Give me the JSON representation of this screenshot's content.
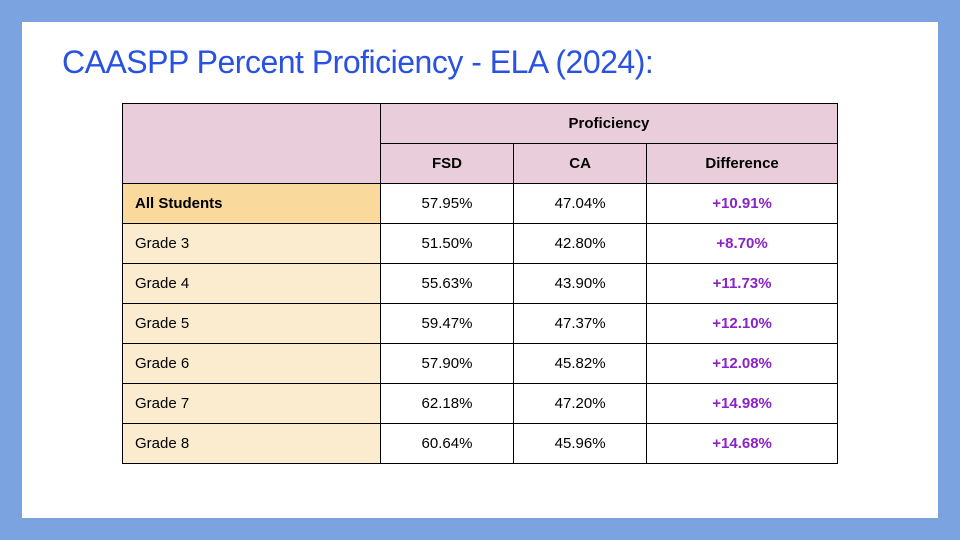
{
  "title": "CAASPP Percent Proficiency - ELA (2024):",
  "table": {
    "header_group": "Proficiency",
    "columns": [
      "FSD",
      "CA",
      "Difference"
    ],
    "rows": [
      {
        "label": "All Students",
        "fsd": "57.95%",
        "ca": "47.04%",
        "diff": "+10.91%",
        "highlight": true
      },
      {
        "label": "Grade 3",
        "fsd": "51.50%",
        "ca": "42.80%",
        "diff": "+8.70%",
        "highlight": false
      },
      {
        "label": "Grade 4",
        "fsd": "55.63%",
        "ca": "43.90%",
        "diff": "+11.73%",
        "highlight": false
      },
      {
        "label": "Grade 5",
        "fsd": "59.47%",
        "ca": "47.37%",
        "diff": "+12.10%",
        "highlight": false
      },
      {
        "label": "Grade 6",
        "fsd": "57.90%",
        "ca": "45.82%",
        "diff": "+12.08%",
        "highlight": false
      },
      {
        "label": "Grade 7",
        "fsd": "62.18%",
        "ca": "47.20%",
        "diff": "+14.98%",
        "highlight": false
      },
      {
        "label": "Grade 8",
        "fsd": "60.64%",
        "ca": "45.96%",
        "diff": "+14.68%",
        "highlight": false
      }
    ]
  },
  "colors": {
    "page_bg": "#7ba3e0",
    "card_bg": "#ffffff",
    "title": "#2952e3",
    "header_bg": "#e9cddb",
    "row_label_bg": "#fceccf",
    "row_label_highlight_bg": "#f9da9c",
    "diff_text": "#8a22c9",
    "border": "#000000"
  }
}
